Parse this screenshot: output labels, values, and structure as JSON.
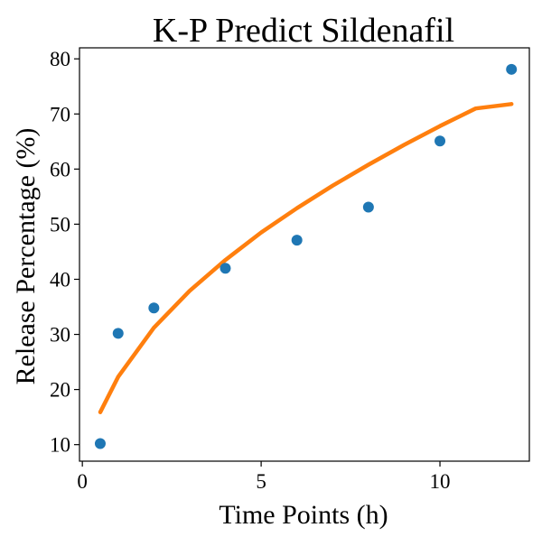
{
  "chart_data": {
    "type": "scatter",
    "title": "K-P Predict Sildenafil",
    "xlabel": "Time Points (h)",
    "ylabel": "Release Percentage (%)",
    "xlim": [
      -0.08,
      12.5
    ],
    "ylim": [
      7,
      82
    ],
    "xticks": [
      0,
      5,
      10
    ],
    "yticks": [
      10,
      20,
      30,
      40,
      50,
      60,
      70,
      80
    ],
    "grid": false,
    "legend": "none",
    "series": [
      {
        "kind": "points",
        "color": "#1f77b4",
        "x": [
          0.5,
          1,
          2,
          4,
          6,
          8,
          10,
          12
        ],
        "y": [
          10.2,
          30.2,
          34.8,
          42.0,
          47.1,
          53.1,
          65.1,
          78.1
        ]
      },
      {
        "kind": "fit-line",
        "color": "#ff7f0e",
        "x": [
          0.5,
          1,
          2,
          3,
          4,
          5,
          6,
          7,
          8,
          9,
          10,
          11,
          12
        ],
        "y": [
          15.9,
          22.3,
          31.2,
          37.9,
          43.5,
          48.5,
          52.9,
          57.0,
          60.8,
          64.4,
          67.8,
          71.0,
          71.8
        ]
      }
    ]
  }
}
